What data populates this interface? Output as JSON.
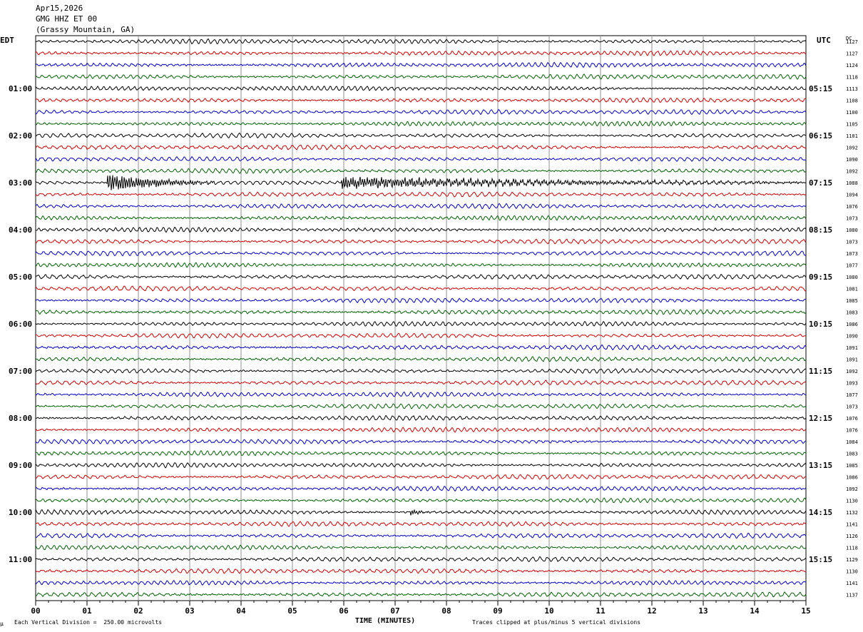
{
  "header": {
    "date": "Apr15,2026",
    "station": "GMG HHZ ET 00",
    "location": "(Grassy Mountain, GA)"
  },
  "left_tz": "EDT",
  "right_tz": "UTC",
  "right_col_label": "DC",
  "footer": {
    "scale": "Each Vertical Division =  250.00 microvolts",
    "clip": "Traces clipped at plus/minus 5 vertical divisions",
    "mark": "μ"
  },
  "colors": {
    "trace_cycle": [
      "#000000",
      "#d40000",
      "#0000c8",
      "#006400"
    ],
    "grid": "#909090",
    "axis": "#000000"
  },
  "chart_data": {
    "type": "line",
    "xlabel": "TIME (MINUTES)",
    "x_ticks": [
      "00",
      "01",
      "02",
      "03",
      "04",
      "05",
      "06",
      "07",
      "08",
      "09",
      "10",
      "11",
      "12",
      "13",
      "14",
      "15"
    ],
    "xlim": [
      0,
      15
    ],
    "rows_per_hour": 4,
    "left_hour_labels": [
      "01:00",
      "02:00",
      "03:00",
      "04:00",
      "05:00",
      "06:00",
      "07:00",
      "08:00",
      "09:00",
      "10:00",
      "11:00"
    ],
    "right_hour_labels": [
      "05:15",
      "06:15",
      "07:15",
      "08:15",
      "09:15",
      "10:15",
      "11:15",
      "12:15",
      "13:15",
      "14:15",
      "15:15"
    ],
    "dc_offsets": [
      1127,
      1127,
      1124,
      1118,
      1113,
      1108,
      1100,
      1105,
      1101,
      1092,
      1090,
      1092,
      1088,
      1094,
      1076,
      1073,
      1080,
      1073,
      1073,
      1077,
      1080,
      1081,
      1085,
      1083,
      1086,
      1090,
      1091,
      1091,
      1092,
      1093,
      1077,
      1073,
      1076,
      1076,
      1084,
      1083,
      1085,
      1086,
      1092,
      1130,
      1132,
      1141,
      1126,
      1118,
      1129,
      1130,
      1141,
      1137
    ],
    "events": [
      {
        "row": 12,
        "start_min": 1.4,
        "end_min": 3.5,
        "peak_amplitude_div": 1.6
      },
      {
        "row": 12,
        "start_min": 5.95,
        "end_min": 15.0,
        "peak_amplitude_div": 0.9
      },
      {
        "row": 40,
        "start_min": 7.3,
        "end_min": 7.7,
        "peak_amplitude_div": 0.6
      }
    ]
  }
}
